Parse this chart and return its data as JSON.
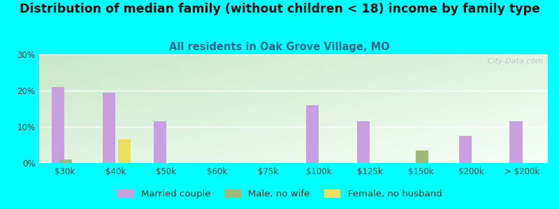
{
  "title": "Distribution of median family (without children < 18) income by family type",
  "subtitle": "All residents in Oak Grove Village, MO",
  "background_color": "#00FFFF",
  "plot_bg_top_left": "#c8e8c8",
  "plot_bg_bottom_right": "#f8fff8",
  "categories": [
    "$30k",
    "$40k",
    "$50k",
    "$60k",
    "$75k",
    "$100k",
    "$125k",
    "$150k",
    "$200k",
    "> $200k"
  ],
  "married_couple": [
    21,
    19.5,
    11.5,
    0,
    0,
    16,
    11.5,
    0,
    7.5,
    11.5
  ],
  "male_no_wife": [
    1,
    0,
    0,
    0,
    0,
    0,
    0,
    3.5,
    0,
    0
  ],
  "female_no_husband": [
    0,
    6.5,
    0,
    0,
    0,
    0,
    0,
    0,
    0,
    0
  ],
  "married_couple_color": "#c8a0e0",
  "male_no_wife_color": "#a0b878",
  "female_no_husband_color": "#e8e060",
  "ylim": [
    0,
    30
  ],
  "yticks": [
    0,
    10,
    20,
    30
  ],
  "bar_width": 0.25,
  "title_fontsize": 12.5,
  "subtitle_fontsize": 10.5,
  "legend_fontsize": 9.5,
  "watermark": " City-Data.com"
}
